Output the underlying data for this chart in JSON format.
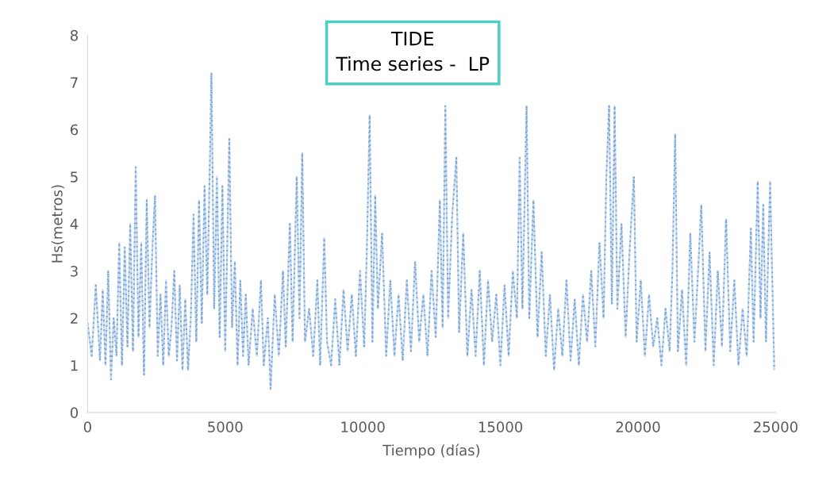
{
  "chart_data": {
    "type": "line",
    "title": "TIDE\nTime series -  LP",
    "xlabel": "Tiempo (días)",
    "ylabel": "Hs(metros)",
    "xlim": [
      0,
      25000
    ],
    "xticks": [
      0,
      5000,
      10000,
      15000,
      20000,
      25000
    ],
    "ylim": [
      0,
      8
    ],
    "yticks": [
      0,
      1,
      2,
      3,
      4,
      5,
      6,
      7,
      8
    ],
    "grid": false,
    "line_style": "dotted",
    "marker": "none",
    "series": [
      {
        "color": "#7aa6d8",
        "x": [
          0,
          150,
          300,
          450,
          550,
          650,
          750,
          850,
          950,
          1050,
          1150,
          1250,
          1350,
          1450,
          1550,
          1650,
          1750,
          1850,
          1950,
          2050,
          2150,
          2250,
          2350,
          2450,
          2550,
          2650,
          2750,
          2850,
          2950,
          3050,
          3150,
          3250,
          3350,
          3450,
          3550,
          3650,
          3750,
          3850,
          3950,
          4050,
          4150,
          4250,
          4350,
          4450,
          4500,
          4600,
          4700,
          4800,
          4900,
          5000,
          5150,
          5250,
          5350,
          5450,
          5550,
          5650,
          5750,
          5850,
          6000,
          6150,
          6300,
          6400,
          6550,
          6650,
          6800,
          6950,
          7100,
          7200,
          7350,
          7450,
          7600,
          7700,
          7800,
          7900,
          8050,
          8200,
          8350,
          8450,
          8600,
          8700,
          8850,
          9000,
          9150,
          9300,
          9450,
          9600,
          9750,
          9900,
          10050,
          10150,
          10250,
          10350,
          10450,
          10550,
          10700,
          10850,
          11000,
          11150,
          11300,
          11450,
          11600,
          11750,
          11900,
          12050,
          12200,
          12350,
          12500,
          12650,
          12800,
          12900,
          13000,
          13100,
          13250,
          13400,
          13500,
          13650,
          13800,
          13950,
          14100,
          14250,
          14400,
          14550,
          14700,
          14850,
          15000,
          15150,
          15300,
          15450,
          15600,
          15700,
          15800,
          15950,
          16050,
          16200,
          16350,
          16500,
          16650,
          16800,
          16950,
          17100,
          17250,
          17400,
          17550,
          17700,
          17850,
          18000,
          18150,
          18300,
          18450,
          18600,
          18750,
          18850,
          18950,
          19050,
          19150,
          19250,
          19400,
          19550,
          19700,
          19850,
          19950,
          20100,
          20250,
          20400,
          20550,
          20700,
          20850,
          21000,
          21150,
          21250,
          21350,
          21450,
          21600,
          21750,
          21900,
          22050,
          22200,
          22300,
          22450,
          22600,
          22750,
          22900,
          23050,
          23200,
          23350,
          23500,
          23650,
          23800,
          23950,
          24100,
          24200,
          24350,
          24450,
          24550,
          24650,
          24800,
          24950
        ],
        "values": [
          1.9,
          1.2,
          2.7,
          1.1,
          2.6,
          1.0,
          3.0,
          0.7,
          2.0,
          1.2,
          3.6,
          1.0,
          3.5,
          1.4,
          4.0,
          1.3,
          5.2,
          1.6,
          3.6,
          0.8,
          4.5,
          1.8,
          3.4,
          4.6,
          1.2,
          2.5,
          1.0,
          2.8,
          1.2,
          1.8,
          3.0,
          1.1,
          2.7,
          0.9,
          2.4,
          0.9,
          2.0,
          4.2,
          1.5,
          4.5,
          1.9,
          4.8,
          2.5,
          5.5,
          7.2,
          2.2,
          5.0,
          1.6,
          4.8,
          1.3,
          5.8,
          1.8,
          3.2,
          1.0,
          2.8,
          1.2,
          2.5,
          1.0,
          2.2,
          1.2,
          2.8,
          1.0,
          2.0,
          0.5,
          2.5,
          1.2,
          3.0,
          1.4,
          4.0,
          1.5,
          5.0,
          2.0,
          5.5,
          1.5,
          2.2,
          1.2,
          2.8,
          1.0,
          3.7,
          1.5,
          1.0,
          2.4,
          1.0,
          2.6,
          1.3,
          2.5,
          1.2,
          3.0,
          1.4,
          3.5,
          6.3,
          1.5,
          4.6,
          2.2,
          3.8,
          1.2,
          2.8,
          1.2,
          2.5,
          1.1,
          2.8,
          1.3,
          3.2,
          1.5,
          2.5,
          1.2,
          3.0,
          1.6,
          4.5,
          1.8,
          6.5,
          2.0,
          4.2,
          5.4,
          1.7,
          3.8,
          1.2,
          2.6,
          1.2,
          3.0,
          1.0,
          2.8,
          1.5,
          2.5,
          1.0,
          2.7,
          1.2,
          3.0,
          2.0,
          5.4,
          2.2,
          6.5,
          2.0,
          4.5,
          1.6,
          3.4,
          1.2,
          2.5,
          0.9,
          2.2,
          1.2,
          2.8,
          1.1,
          2.4,
          1.0,
          2.5,
          1.5,
          3.0,
          1.4,
          3.6,
          2.0,
          5.0,
          6.5,
          2.3,
          6.5,
          2.2,
          4.0,
          1.6,
          3.5,
          5.0,
          1.5,
          2.8,
          1.2,
          2.5,
          1.4,
          2.0,
          1.0,
          2.2,
          1.3,
          3.0,
          5.9,
          1.3,
          2.6,
          1.0,
          3.8,
          1.5,
          3.2,
          4.4,
          1.3,
          3.4,
          1.0,
          3.0,
          1.4,
          4.1,
          1.3,
          2.8,
          1.0,
          2.2,
          1.2,
          3.9,
          1.5,
          4.9,
          2.0,
          4.4,
          1.5,
          4.9,
          0.9
        ]
      }
    ]
  }
}
